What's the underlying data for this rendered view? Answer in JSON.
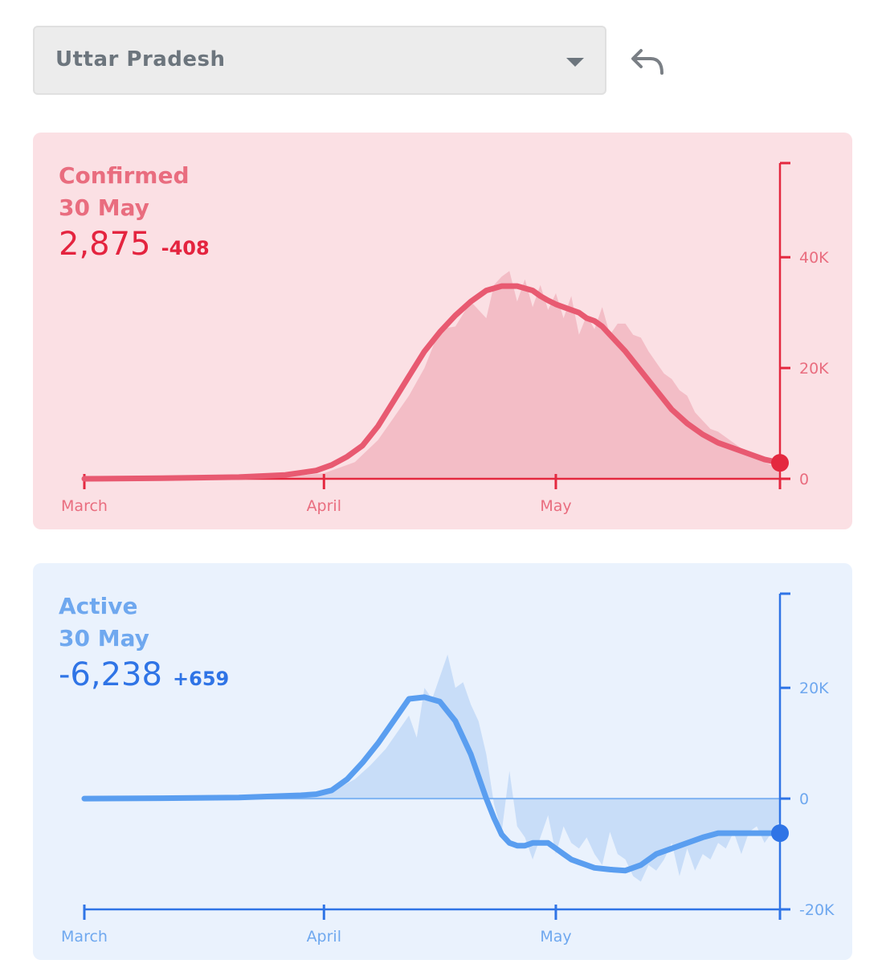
{
  "selector": {
    "value": "Uttar Pradesh"
  },
  "icons": {
    "caret": "chevron-down-icon",
    "back": "undo-arrow-icon"
  },
  "colors": {
    "confirmed_bg": "#fbe0e4",
    "confirmed_line": "#e85a71",
    "confirmed_axis": "#e4283f",
    "confirmed_label": "#e96d7f",
    "confirmed_area": "#f1b6c1",
    "active_bg": "#eaf2fd",
    "active_line": "#5a9ef0",
    "active_axis": "#2f74e6",
    "active_label": "#6fa8ef",
    "active_area": "#c2d9f7"
  },
  "confirmed": {
    "title": "Confirmed",
    "date": "30 May",
    "value": "2,875",
    "delta": "-408"
  },
  "active": {
    "title": "Active",
    "date": "30 May",
    "value": "-6,238",
    "delta": "+659"
  },
  "chart_data": [
    {
      "type": "area",
      "title": "Confirmed",
      "x_ticks": [
        "March",
        "April",
        "May"
      ],
      "y_ticks": [
        0,
        20000,
        40000
      ],
      "y_tick_labels": [
        "0",
        "20K",
        "40K"
      ],
      "ylim": [
        0,
        57000
      ],
      "x_range_days": [
        0,
        90
      ],
      "series": [
        {
          "kind": "daily",
          "x": [
            0,
            10,
            20,
            28,
            31,
            35,
            38,
            40,
            42,
            44,
            46,
            48,
            50,
            52,
            53,
            54,
            55,
            56,
            57,
            58,
            59,
            60,
            61,
            62,
            63,
            64,
            65,
            66,
            67,
            68,
            69,
            70,
            71,
            72,
            73,
            74,
            75,
            76,
            77,
            78,
            79,
            80,
            81,
            82,
            84,
            86,
            88,
            90
          ],
          "y": [
            0,
            50,
            200,
            600,
            1000,
            3000,
            7000,
            11000,
            15000,
            20000,
            27000,
            27500,
            32000,
            29000,
            35000,
            36500,
            37500,
            32000,
            36000,
            31000,
            35000,
            30500,
            33500,
            29000,
            33000,
            26000,
            29500,
            27000,
            31000,
            26000,
            28000,
            28000,
            26000,
            25500,
            23000,
            21000,
            19000,
            18000,
            16000,
            15000,
            12000,
            10500,
            9000,
            8500,
            6500,
            4500,
            3000,
            1800
          ]
        },
        {
          "kind": "7-day average",
          "x": [
            0,
            10,
            20,
            26,
            30,
            32,
            34,
            36,
            38,
            40,
            42,
            44,
            46,
            48,
            50,
            52,
            54,
            56,
            58,
            59,
            60,
            61,
            62,
            64,
            65,
            66,
            67,
            68,
            70,
            72,
            74,
            76,
            78,
            80,
            82,
            84,
            86,
            88,
            90
          ],
          "y": [
            0,
            100,
            300,
            700,
            1500,
            2500,
            4000,
            6000,
            9500,
            14000,
            18500,
            23000,
            26500,
            29500,
            32000,
            34000,
            34800,
            34800,
            34000,
            33000,
            32200,
            31500,
            31000,
            30000,
            29000,
            28500,
            27500,
            26000,
            23000,
            19500,
            16000,
            12500,
            10000,
            8000,
            6500,
            5500,
            4500,
            3500,
            2875
          ]
        }
      ]
    },
    {
      "type": "area",
      "title": "Active",
      "x_ticks": [
        "March",
        "April",
        "May"
      ],
      "y_ticks": [
        -20000,
        0,
        20000
      ],
      "y_tick_labels": [
        "-20K",
        "0",
        "20K"
      ],
      "ylim": [
        -20000,
        37000
      ],
      "x_range_days": [
        0,
        90
      ],
      "series": [
        {
          "kind": "daily",
          "x": [
            0,
            10,
            20,
            28,
            31,
            33,
            35,
            37,
            39,
            40,
            41,
            42,
            43,
            44,
            45,
            46,
            47,
            48,
            49,
            50,
            51,
            52,
            53,
            54,
            55,
            56,
            57,
            58,
            59,
            60,
            61,
            62,
            63,
            64,
            65,
            66,
            67,
            68,
            69,
            70,
            71,
            72,
            73,
            74,
            75,
            76,
            77,
            78,
            79,
            80,
            81,
            82,
            83,
            84,
            85,
            86,
            87,
            88,
            89,
            90
          ],
          "y": [
            0,
            100,
            200,
            500,
            900,
            2000,
            3500,
            6000,
            9000,
            11000,
            13000,
            15000,
            11000,
            20000,
            18000,
            22000,
            26000,
            20000,
            21000,
            17000,
            14000,
            8000,
            -1000,
            -6000,
            5000,
            -5000,
            -7000,
            -11000,
            -7000,
            -3000,
            -10000,
            -5000,
            -8000,
            -9000,
            -7000,
            -10000,
            -12000,
            -6000,
            -10000,
            -11000,
            -14000,
            -15000,
            -12000,
            -13000,
            -11000,
            -8000,
            -14000,
            -9000,
            -13000,
            -10000,
            -11000,
            -8000,
            -9000,
            -6000,
            -10000,
            -6000,
            -5000,
            -8000,
            -6000,
            -4000
          ]
        },
        {
          "kind": "7-day average",
          "x": [
            0,
            10,
            20,
            28,
            30,
            32,
            34,
            36,
            38,
            40,
            42,
            44,
            46,
            48,
            50,
            51,
            52,
            53,
            54,
            55,
            56,
            57,
            58,
            59,
            60,
            61,
            62,
            63,
            64,
            66,
            68,
            70,
            72,
            74,
            76,
            78,
            80,
            82,
            84,
            86,
            88,
            90
          ],
          "y": [
            0,
            80,
            200,
            600,
            800,
            1500,
            3500,
            6500,
            10000,
            14000,
            18000,
            18300,
            17500,
            14000,
            8000,
            4000,
            0,
            -3500,
            -6500,
            -8000,
            -8500,
            -8500,
            -8000,
            -8000,
            -8000,
            -9000,
            -10000,
            -11000,
            -11500,
            -12500,
            -12800,
            -13000,
            -12000,
            -10000,
            -9000,
            -8000,
            -7000,
            -6238,
            -6238,
            -6238,
            -6238,
            -6238
          ]
        }
      ]
    }
  ]
}
